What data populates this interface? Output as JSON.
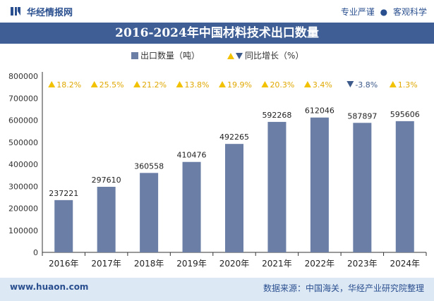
{
  "header": {
    "brand": "华经情报网",
    "tagline_left": "专业严谨",
    "tagline_right": "客观科学"
  },
  "footer": {
    "site": "www.huaon.com",
    "source": "数据来源：中国海关，华经产业研究院整理"
  },
  "colors": {
    "bar": "#6b7fa6",
    "up": "#f2c200",
    "down": "#3d5a8a",
    "title_bg": "#3f5e95",
    "footer_bg": "#dde8f5"
  },
  "chart_data": {
    "type": "bar",
    "title": "2016-2024年中国材料技术出口数量",
    "legend": {
      "bar_label": "出口数量（吨）",
      "growth_label": "同比增长（%）",
      "placement": "top"
    },
    "categories": [
      "2016年",
      "2017年",
      "2018年",
      "2019年",
      "2020年",
      "2021年",
      "2022年",
      "2023年",
      "2024年"
    ],
    "series": [
      {
        "name": "出口数量（吨）",
        "values": [
          237221,
          297610,
          360558,
          410476,
          492265,
          592268,
          612046,
          587897,
          595606
        ]
      }
    ],
    "growth": {
      "name": "同比增长（%）",
      "values": [
        18.2,
        25.5,
        21.2,
        13.8,
        19.9,
        20.3,
        3.4,
        -3.8,
        1.3
      ],
      "labels": [
        "18.2%",
        "25.5%",
        "21.2%",
        "13.8%",
        "19.9%",
        "20.3%",
        "3.4%",
        "-3.8%",
        "1.3%"
      ]
    },
    "yticks": [
      "0",
      "100000",
      "200000",
      "300000",
      "400000",
      "500000",
      "600000",
      "700000",
      "800000"
    ],
    "ylim": [
      0,
      800000
    ],
    "grid": false
  }
}
